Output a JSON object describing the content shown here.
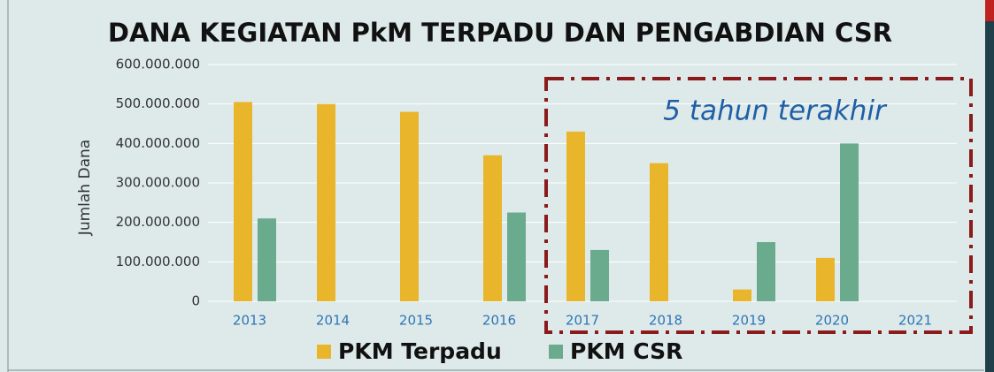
{
  "chart_data": {
    "type": "bar",
    "title": "DANA KEGIATAN PkM TERPADU DAN PENGABDIAN CSR",
    "y_label": "Jumlah Dana",
    "annotation": "5 tahun terakhir",
    "categories": [
      "2013",
      "2014",
      "2015",
      "2016",
      "2017",
      "2018",
      "2019",
      "2020",
      "2021"
    ],
    "series": [
      {
        "name": "PKM Terpadu",
        "color": "#e9b52a",
        "values": [
          505000000,
          500000000,
          480000000,
          370000000,
          430000000,
          350000000,
          30000000,
          110000000,
          null
        ]
      },
      {
        "name": "PKM CSR",
        "color": "#6aab8e",
        "values": [
          210000000,
          null,
          null,
          225000000,
          130000000,
          null,
          150000000,
          400000000,
          null
        ]
      }
    ],
    "ylim": [
      0,
      600000000
    ],
    "yticks": [
      0,
      {
        "value": 100000000,
        "label": "100.000.000"
      },
      {
        "value": 200000000,
        "label": "200.000.000"
      },
      {
        "value": 300000000,
        "label": "300.000.000"
      },
      {
        "value": 400000000,
        "label": "400.000.000"
      },
      {
        "value": 500000000,
        "label": "500.000.000"
      },
      {
        "value": 600000000,
        "label": "600.000.000"
      }
    ],
    "grid": true
  }
}
